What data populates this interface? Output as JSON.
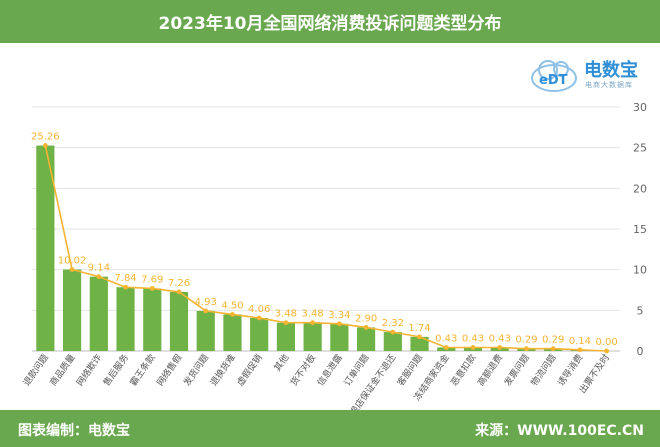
{
  "header": {
    "title": "2023年10月全国网络消费投诉问题类型分布"
  },
  "footer": {
    "credit": "图表编制：电数宝",
    "source": "来源：WWW.100EC.CN"
  },
  "logo": {
    "mark": "eDT",
    "brand": "电数宝",
    "tagline": "电商大数据库"
  },
  "colors": {
    "accent": "#6aa84f",
    "bar": "#6fb245",
    "line": "#f5b432",
    "label": "#f5b432"
  },
  "chart_data": {
    "type": "bar",
    "title": "2023年10月全国网络消费投诉问题类型分布",
    "unit": "%",
    "categories": [
      "退款问题",
      "商品质量",
      "网络欺诈",
      "售后服务",
      "霸王条款",
      "网络售假",
      "发货问题",
      "退换货难",
      "虚假促销",
      "其他",
      "货不对板",
      "信息泄露",
      "订单问题",
      "退店保证金不退还",
      "客服问题",
      "冻结商家资金",
      "恶意扣款",
      "高额退费",
      "发票问题",
      "物流问题",
      "诱导消费",
      "出票不及时"
    ],
    "values": [
      25.26,
      10.02,
      9.14,
      7.84,
      7.69,
      7.26,
      4.93,
      4.5,
      4.06,
      3.48,
      3.48,
      3.34,
      2.9,
      2.32,
      1.74,
      0.43,
      0.43,
      0.43,
      0.29,
      0.29,
      0.14,
      0.0
    ],
    "value_labels": [
      "25.26",
      "10.02",
      "9.14",
      "7.84",
      "7.69",
      "7.26",
      "4.93",
      "4.50",
      "4.06",
      "3.48",
      "3.48",
      "3.34",
      "2.90",
      "2.32",
      "1.74",
      "0.43",
      "0.43",
      "0.43",
      "0.29",
      "0.29",
      "0.14",
      "0.00"
    ],
    "ylim": [
      0,
      30
    ],
    "yticks": [
      0,
      5,
      10,
      15,
      20,
      25,
      30
    ],
    "ytick_labels": [
      "0",
      "5",
      "10",
      "15",
      "20",
      "25",
      "30"
    ],
    "grid": true,
    "series": [
      {
        "kind": "bar"
      },
      {
        "kind": "line"
      }
    ]
  }
}
